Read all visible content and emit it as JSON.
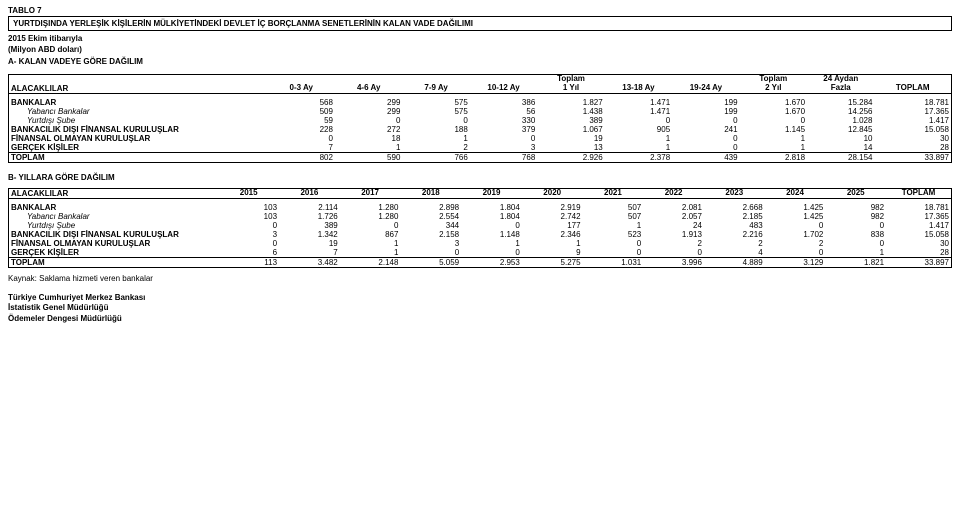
{
  "table_no": "TABLO 7",
  "title": "YURTDIŞINDA YERLEŞİK KİŞİLERİN MÜLKİYETİNDEKİ DEVLET İÇ BORÇLANMA SENETLERİNİN KALAN VADE DAĞILIMI",
  "asof": "2015 Ekim itibarıyla",
  "unit": "(Milyon ABD doları)",
  "sectionA_title": "A-  KALAN VADEYE GÖRE DAĞILIM",
  "sectionB_title": "B- YILLARA GÖRE DAĞILIM",
  "alacak_label": "ALACAKLILAR",
  "sectionA": {
    "headers": [
      "0-3 Ay",
      "4-6 Ay",
      "7-9 Ay",
      "10-12 Ay",
      "Toplam\n1 Yıl",
      "13-18 Ay",
      "19-24 Ay",
      "Toplam\n2 Yıl",
      "24 Aydan\nFazla",
      "TOPLAM"
    ],
    "rows": [
      {
        "label": "BANKALAR",
        "indent": 0,
        "vals": [
          "568",
          "299",
          "575",
          "386",
          "1.827",
          "1.471",
          "199",
          "1.670",
          "15.284",
          "18.781"
        ]
      },
      {
        "label": "Yabancı Bankalar",
        "indent": 1,
        "italic": true,
        "vals": [
          "509",
          "299",
          "575",
          "56",
          "1.438",
          "1.471",
          "199",
          "1.670",
          "14.256",
          "17.365"
        ]
      },
      {
        "label": "Yurtdışı Şube",
        "indent": 1,
        "italic": true,
        "vals": [
          "59",
          "0",
          "0",
          "330",
          "389",
          "0",
          "0",
          "0",
          "1.028",
          "1.417"
        ]
      },
      {
        "label": "BANKACILIK DIŞI FİNANSAL KURULUŞLAR",
        "indent": 0,
        "vals": [
          "228",
          "272",
          "188",
          "379",
          "1.067",
          "905",
          "241",
          "1.145",
          "12.845",
          "15.058"
        ]
      },
      {
        "label": "FİNANSAL OLMAYAN KURULUŞLAR",
        "indent": 0,
        "vals": [
          "0",
          "18",
          "1",
          "0",
          "19",
          "1",
          "0",
          "1",
          "10",
          "30"
        ]
      },
      {
        "label": "GERÇEK KİŞİLER",
        "indent": 0,
        "vals": [
          "7",
          "1",
          "2",
          "3",
          "13",
          "1",
          "0",
          "1",
          "14",
          "28"
        ]
      }
    ],
    "total": {
      "label": "TOPLAM",
      "vals": [
        "802",
        "590",
        "766",
        "768",
        "2.926",
        "2.378",
        "439",
        "2.818",
        "28.154",
        "33.897"
      ]
    }
  },
  "sectionB": {
    "headers": [
      "2015",
      "2016",
      "2017",
      "2018",
      "2019",
      "2020",
      "2021",
      "2022",
      "2023",
      "2024",
      "2025",
      "TOPLAM"
    ],
    "rows": [
      {
        "label": "BANKALAR",
        "indent": 0,
        "vals": [
          "103",
          "2.114",
          "1.280",
          "2.898",
          "1.804",
          "2.919",
          "507",
          "2.081",
          "2.668",
          "1.425",
          "982",
          "18.781"
        ]
      },
      {
        "label": "Yabancı Bankalar",
        "indent": 1,
        "italic": true,
        "vals": [
          "103",
          "1.726",
          "1.280",
          "2.554",
          "1.804",
          "2.742",
          "507",
          "2.057",
          "2.185",
          "1.425",
          "982",
          "17.365"
        ]
      },
      {
        "label": "Yurtdışı Şube",
        "indent": 1,
        "italic": true,
        "vals": [
          "0",
          "389",
          "0",
          "344",
          "0",
          "177",
          "1",
          "24",
          "483",
          "0",
          "0",
          "1.417"
        ]
      },
      {
        "label": "BANKACILIK DIŞI FİNANSAL KURULUŞLAR",
        "indent": 0,
        "vals": [
          "3",
          "1.342",
          "867",
          "2.158",
          "1.148",
          "2.346",
          "523",
          "1.913",
          "2.216",
          "1.702",
          "838",
          "15.058"
        ]
      },
      {
        "label": "FİNANSAL OLMAYAN KURULUŞLAR",
        "indent": 0,
        "vals": [
          "0",
          "19",
          "1",
          "3",
          "1",
          "1",
          "0",
          "2",
          "2",
          "2",
          "0",
          "30"
        ]
      },
      {
        "label": "GERÇEK KİŞİLER",
        "indent": 0,
        "vals": [
          "6",
          "7",
          "1",
          "0",
          "0",
          "9",
          "0",
          "0",
          "4",
          "0",
          "1",
          "28"
        ]
      }
    ],
    "total": {
      "label": "TOPLAM",
      "vals": [
        "113",
        "3.482",
        "2.148",
        "5.059",
        "2.953",
        "5.275",
        "1.031",
        "3.996",
        "4.889",
        "3.129",
        "1.821",
        "33.897"
      ]
    }
  },
  "source_note": "Kaynak: Saklama hizmeti veren bankalar",
  "footer": [
    "Türkiye Cumhuriyet Merkez Bankası",
    "İstatistik Genel Müdürlüğü",
    "Ödemeler Dengesi Müdürlüğü"
  ]
}
